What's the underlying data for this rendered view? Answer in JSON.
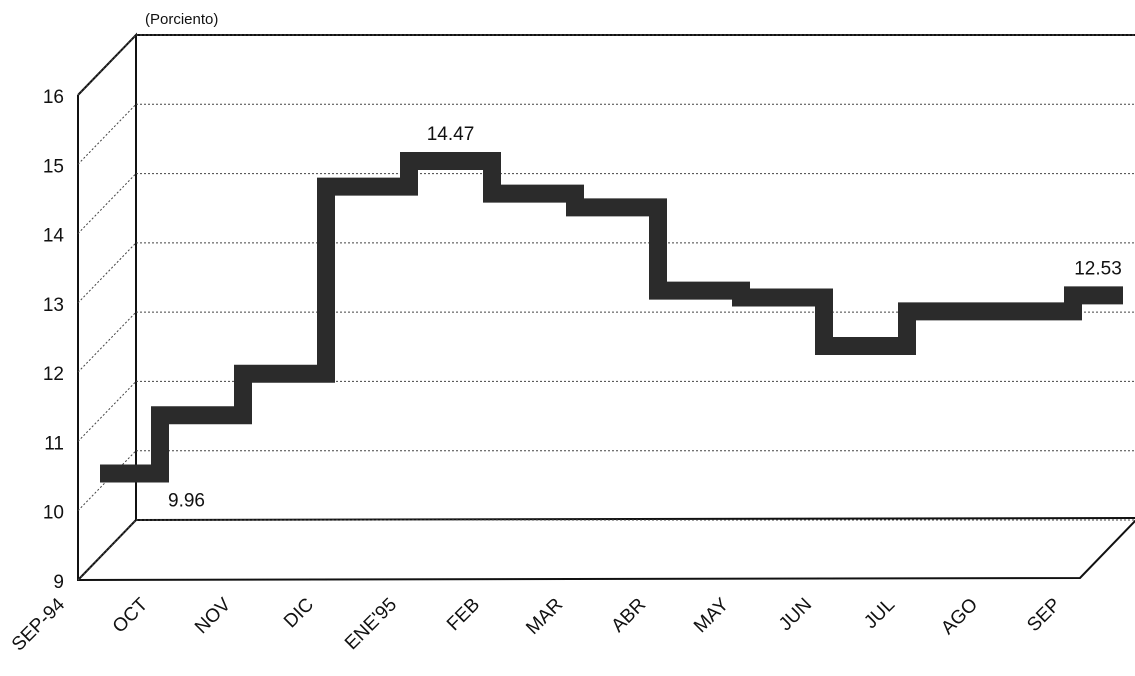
{
  "chart_data": {
    "type": "step",
    "y_label": "(Porciento)",
    "categories": [
      "SEP-94",
      "OCT",
      "NOV",
      "DIC",
      "ENE'95",
      "FEB",
      "MAR",
      "ABR",
      "MAY",
      "JUN",
      "JUL",
      "AGO",
      "SEP"
    ],
    "values": [
      9.96,
      10.8,
      11.4,
      14.1,
      14.47,
      14.0,
      13.8,
      12.6,
      12.5,
      11.8,
      12.3,
      12.3,
      12.53
    ],
    "value_labels": [
      "9.96",
      null,
      null,
      null,
      "14.47",
      null,
      null,
      null,
      null,
      null,
      null,
      null,
      "12.53"
    ],
    "color": "#2b2b2b",
    "ylim": [
      9,
      16
    ],
    "yticks": [
      9,
      10,
      11,
      12,
      13,
      14,
      15,
      16
    ],
    "grid": true
  }
}
